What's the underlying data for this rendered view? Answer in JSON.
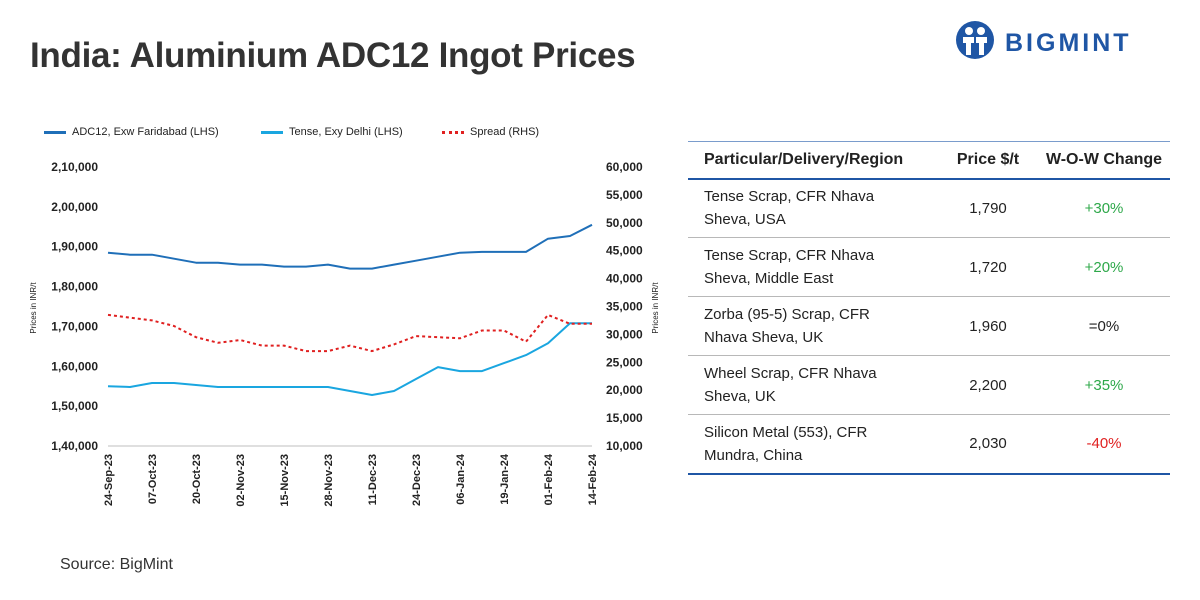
{
  "title": "India: Aluminium ADC12 Ingot Prices",
  "logo": {
    "brand": "BIGMINT"
  },
  "source": "Source: BigMint",
  "chart_data": {
    "type": "line",
    "title": "",
    "x": [
      "24-Sep-23",
      "01-Oct-23",
      "07-Oct-23",
      "14-Oct-23",
      "20-Oct-23",
      "27-Oct-23",
      "02-Nov-23",
      "09-Nov-23",
      "15-Nov-23",
      "22-Nov-23",
      "28-Nov-23",
      "05-Dec-23",
      "11-Dec-23",
      "18-Dec-23",
      "24-Dec-23",
      "31-Dec-23",
      "06-Jan-24",
      "13-Jan-24",
      "19-Jan-24",
      "26-Jan-24",
      "01-Feb-24",
      "08-Feb-24",
      "14-Feb-24"
    ],
    "x_tick_labels": [
      "24-Sep-23",
      "07-Oct-23",
      "20-Oct-23",
      "02-Nov-23",
      "15-Nov-23",
      "28-Nov-23",
      "11-Dec-23",
      "24-Dec-23",
      "06-Jan-24",
      "19-Jan-24",
      "01-Feb-24",
      "14-Feb-24"
    ],
    "y_left": {
      "label": "Prices in INR/t",
      "lim": [
        140000,
        210000
      ],
      "ticks": [
        140000,
        150000,
        160000,
        170000,
        180000,
        190000,
        200000,
        210000
      ],
      "tick_labels": [
        "1,40,000",
        "1,50,000",
        "1,60,000",
        "1,70,000",
        "1,80,000",
        "1,90,000",
        "2,00,000",
        "2,10,000"
      ]
    },
    "y_right": {
      "label": "Prices in INR/t",
      "lim": [
        10000,
        60000
      ],
      "ticks": [
        10000,
        15000,
        20000,
        25000,
        30000,
        35000,
        40000,
        45000,
        50000,
        55000,
        60000
      ],
      "tick_labels": [
        "10,000",
        "15,000",
        "20,000",
        "25,000",
        "30,000",
        "35,000",
        "40,000",
        "45,000",
        "50,000",
        "55,000",
        "60,000"
      ]
    },
    "grid": false,
    "legend_position": "top",
    "series": [
      {
        "name": "ADC12, Exw Faridabad (LHS)",
        "axis": "left",
        "color": "#1f6fb8",
        "style": "solid",
        "values": [
          188500,
          188000,
          188000,
          187000,
          186000,
          186000,
          185500,
          185500,
          185000,
          185000,
          185500,
          184500,
          184500,
          185500,
          186500,
          187500,
          188500,
          188700,
          188700,
          188700,
          192000,
          192700,
          195500
        ]
      },
      {
        "name": "Tense, Exy Delhi (LHS)",
        "axis": "left",
        "color": "#1aa6e0",
        "style": "solid",
        "values": [
          155000,
          154800,
          155800,
          155800,
          155300,
          154800,
          154800,
          154800,
          154800,
          154800,
          154800,
          153800,
          152800,
          153800,
          156800,
          159800,
          158800,
          158800,
          160800,
          162800,
          165800,
          170800,
          170800
        ]
      },
      {
        "name": "Spread (RHS)",
        "axis": "right",
        "color": "#e02020",
        "style": "dashed",
        "values": [
          33500,
          33000,
          32500,
          31500,
          29500,
          28500,
          29000,
          28000,
          28000,
          27000,
          27000,
          28000,
          27000,
          28200,
          29700,
          29500,
          29300,
          30700,
          30700,
          28700,
          33500,
          31900,
          31900
        ]
      }
    ]
  },
  "table": {
    "headers": [
      "Particular/Delivery/Region",
      "Price $/t",
      "W-O-W Change"
    ],
    "rows": [
      {
        "line1": "Tense Scrap, CFR Nhava",
        "line2": "Sheva, USA",
        "price": "1,790",
        "change": "+30%",
        "tone": "pos"
      },
      {
        "line1": "Tense Scrap, CFR Nhava",
        "line2": "Sheva, Middle East",
        "price": "1,720",
        "change": "+20%",
        "tone": "pos"
      },
      {
        "line1": "Zorba (95-5) Scrap, CFR",
        "line2": "Nhava Sheva, UK",
        "price": "1,960",
        "change": "=0%",
        "tone": "neu"
      },
      {
        "line1": "Wheel Scrap, CFR Nhava",
        "line2": "Sheva, UK",
        "price": "2,200",
        "change": "+35%",
        "tone": "pos"
      },
      {
        "line1": "Silicon Metal (553), CFR",
        "line2": "Mundra, China",
        "price": "2,030",
        "change": "-40%",
        "tone": "neg"
      }
    ]
  }
}
